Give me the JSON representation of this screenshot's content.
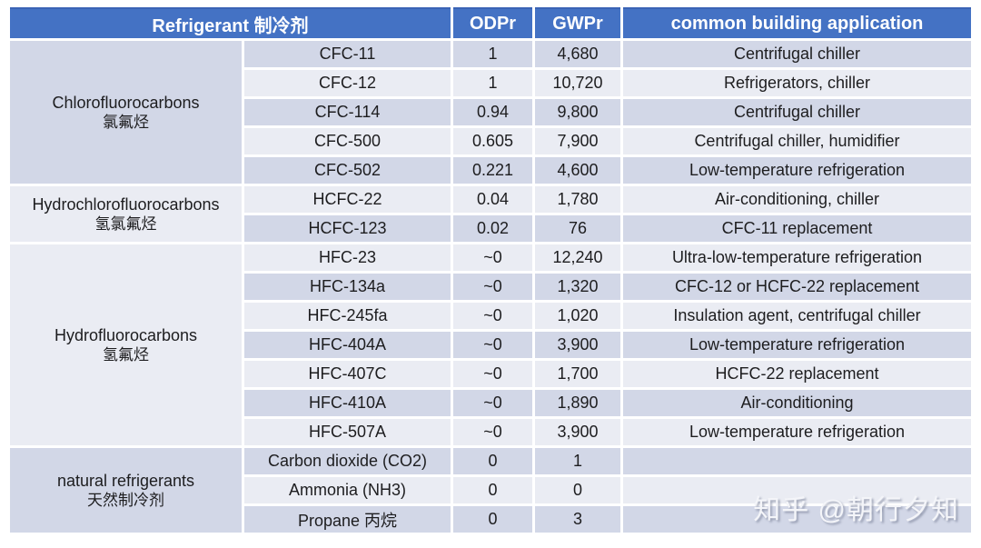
{
  "colors": {
    "header_bg": "#4472c4",
    "header_text": "#ffffff",
    "header_top_edge": "#3a63b5",
    "row_band_blue": "#d2d7e7",
    "row_band_light": "#eaecf3",
    "body_text": "#1d1d1f"
  },
  "table": {
    "header": {
      "refrigerant": "Refrigerant 制冷剂",
      "odp": "ODPr",
      "gwp": "GWPr",
      "application": "common building application"
    },
    "groups": [
      {
        "label_en": "Chlorofluorocarbons",
        "label_zh": "氯氟烃",
        "rows": [
          {
            "name": "CFC-11",
            "odp": "1",
            "gwp": "4,680",
            "application": "Centrifugal chiller"
          },
          {
            "name": "CFC-12",
            "odp": "1",
            "gwp": "10,720",
            "application": "Refrigerators, chiller"
          },
          {
            "name": "CFC-114",
            "odp": "0.94",
            "gwp": "9,800",
            "application": "Centrifugal chiller"
          },
          {
            "name": "CFC-500",
            "odp": "0.605",
            "gwp": "7,900",
            "application": "Centrifugal chiller, humidifier"
          },
          {
            "name": "CFC-502",
            "odp": "0.221",
            "gwp": "4,600",
            "application": "Low-temperature refrigeration"
          }
        ]
      },
      {
        "label_en": "Hydrochlorofluorocarbons",
        "label_zh": "氢氯氟烃",
        "rows": [
          {
            "name": "HCFC-22",
            "odp": "0.04",
            "gwp": "1,780",
            "application": "Air-conditioning, chiller"
          },
          {
            "name": "HCFC-123",
            "odp": "0.02",
            "gwp": "76",
            "application": "CFC-11 replacement"
          }
        ]
      },
      {
        "label_en": "Hydrofluorocarbons",
        "label_zh": "氢氟烃",
        "rows": [
          {
            "name": "HFC-23",
            "odp": "~0",
            "gwp": "12,240",
            "application": "Ultra-low-temperature refrigeration"
          },
          {
            "name": "HFC-134a",
            "odp": "~0",
            "gwp": "1,320",
            "application": "CFC-12 or HCFC-22 replacement"
          },
          {
            "name": "HFC-245fa",
            "odp": "~0",
            "gwp": "1,020",
            "application": "Insulation agent, centrifugal chiller"
          },
          {
            "name": "HFC-404A",
            "odp": "~0",
            "gwp": "3,900",
            "application": "Low-temperature refrigeration"
          },
          {
            "name": "HFC-407C",
            "odp": "~0",
            "gwp": "1,700",
            "application": "HCFC-22 replacement"
          },
          {
            "name": "HFC-410A",
            "odp": "~0",
            "gwp": "1,890",
            "application": "Air-conditioning"
          },
          {
            "name": "HFC-507A",
            "odp": "~0",
            "gwp": "3,900",
            "application": "Low-temperature refrigeration"
          }
        ]
      },
      {
        "label_en": "natural refrigerants",
        "label_zh": "天然制冷剂",
        "rows": [
          {
            "name": "Carbon dioxide (CO2)",
            "odp": "0",
            "gwp": "1",
            "application": ""
          },
          {
            "name": "Ammonia (NH3)",
            "odp": "0",
            "gwp": "0",
            "application": ""
          },
          {
            "name": "Propane 丙烷",
            "odp": "0",
            "gwp": "3",
            "application": ""
          }
        ]
      }
    ]
  },
  "watermark": {
    "text": "知乎 @朝行夕知"
  }
}
